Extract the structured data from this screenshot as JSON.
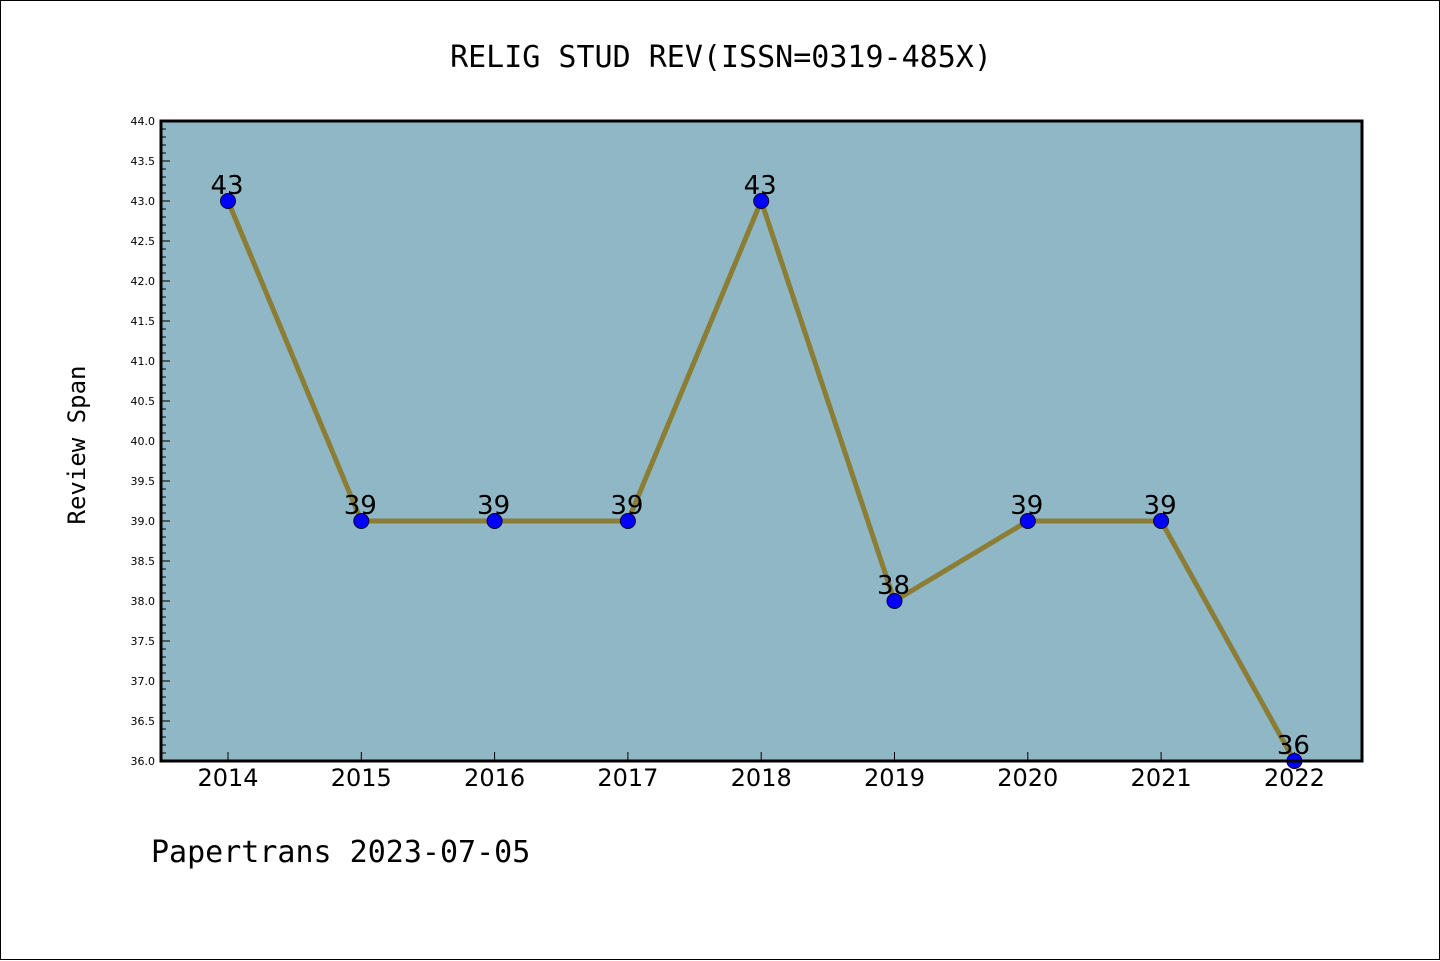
{
  "chart_data": {
    "type": "line",
    "title": "RELIG STUD REV(ISSN=0319-485X)",
    "ylabel": "Review Span",
    "xlabel": "",
    "categories": [
      "2014",
      "2015",
      "2016",
      "2017",
      "2018",
      "2019",
      "2020",
      "2021",
      "2022"
    ],
    "values": [
      43,
      39,
      39,
      39,
      43,
      38,
      39,
      39,
      36
    ],
    "data_labels": [
      "43",
      "39",
      "39",
      "39",
      "43",
      "38",
      "39",
      "39",
      "36"
    ],
    "ylim": [
      36.0,
      44.0
    ],
    "yticks": [
      "36.0",
      "36.5",
      "37.0",
      "37.5",
      "38.0",
      "38.5",
      "39.0",
      "39.5",
      "40.0",
      "40.5",
      "41.0",
      "41.5",
      "42.0",
      "42.5",
      "43.0",
      "43.5",
      "44.0"
    ],
    "grid": false,
    "legend": "none",
    "colors": {
      "plot_background": "#8fb7c5",
      "line": "#8b7d34",
      "marker": "#0000ff"
    }
  },
  "footer": {
    "text": "Papertrans 2023-07-05"
  }
}
